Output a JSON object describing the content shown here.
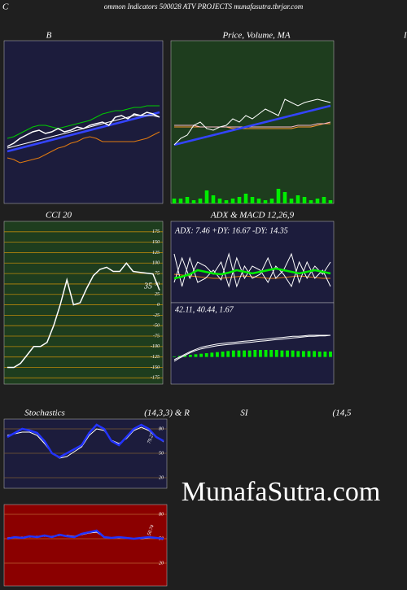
{
  "header": {
    "left": "C",
    "title": "ommon  Indicators 500028  ATV PROJECTS munafasutra.tbrjar.com",
    "right": "I"
  },
  "watermark": "MunafaSutra.com",
  "chart_data": [
    {
      "type": "line",
      "title": "B",
      "background": "#1c1c3c",
      "ylim": [
        0,
        100
      ],
      "series": [
        {
          "color": "#00cc00",
          "line_width": 1,
          "values": [
            40,
            41,
            43,
            45,
            47,
            48,
            48,
            47,
            46,
            47,
            48,
            49,
            50,
            51,
            53,
            55,
            56,
            57,
            57,
            58,
            59,
            59,
            60,
            60,
            60
          ]
        },
        {
          "color": "#e07a10",
          "line_width": 1,
          "values": [
            28,
            27,
            25,
            26,
            27,
            28,
            30,
            32,
            34,
            35,
            37,
            38,
            40,
            41,
            40,
            38,
            38,
            38,
            38,
            38,
            38,
            39,
            40,
            42,
            44
          ]
        },
        {
          "color": "#3344ff",
          "line_width": 2.5,
          "values": [
            32,
            33,
            34,
            35,
            36,
            37,
            38,
            39,
            40,
            41,
            42,
            43,
            44,
            45,
            46,
            47,
            48,
            49,
            50,
            51,
            52,
            53,
            54,
            55,
            56
          ]
        },
        {
          "color": "#ffffff",
          "line_width": 1,
          "values": [
            34,
            35,
            36,
            37,
            38,
            39,
            40,
            41,
            42,
            43,
            44,
            45,
            46,
            47,
            48,
            49,
            50,
            51,
            52,
            53,
            54,
            54,
            54,
            54,
            53
          ]
        },
        {
          "color": "#ffffff",
          "line_width": 1.5,
          "values": [
            35,
            37,
            40,
            42,
            44,
            45,
            43,
            44,
            46,
            44,
            45,
            47,
            46,
            48,
            49,
            50,
            48,
            53,
            54,
            52,
            55,
            54,
            56,
            55,
            53
          ]
        }
      ]
    },
    {
      "type": "line",
      "title": "Price,  Volume,  MA",
      "background": "#1e3d1e",
      "ylim": [
        0,
        100
      ],
      "series": [
        {
          "type": "bar",
          "color": "#00ee00",
          "values": [
            3,
            3,
            4,
            2,
            3,
            8,
            5,
            3,
            2,
            3,
            4,
            6,
            4,
            3,
            2,
            3,
            9,
            7,
            3,
            5,
            4,
            2,
            3,
            4,
            2
          ]
        },
        {
          "color": "#ff9933",
          "line_width": 1,
          "values": [
            47,
            47,
            47,
            47,
            47,
            47,
            47,
            47,
            47,
            46,
            46,
            46,
            46,
            46,
            46,
            46,
            46,
            46,
            46,
            47,
            47,
            47,
            48,
            49,
            49
          ]
        },
        {
          "color": "#ffbbcc",
          "line_width": 1,
          "values": [
            48,
            48,
            48,
            48,
            47,
            47,
            47,
            47,
            47,
            47,
            47,
            47,
            47,
            47,
            47,
            47,
            47,
            47,
            47,
            48,
            48,
            48,
            49,
            49,
            50
          ]
        },
        {
          "color": "#3344ff",
          "line_width": 2.5,
          "values": [
            36,
            37,
            38,
            39,
            40,
            41,
            42,
            43,
            44,
            45,
            46,
            47,
            48,
            49,
            50,
            51,
            52,
            53,
            54,
            55,
            56,
            57,
            58,
            59,
            60
          ]
        },
        {
          "color": "#ffffff",
          "line_width": 1,
          "values": [
            36,
            40,
            42,
            48,
            50,
            46,
            45,
            47,
            48,
            52,
            50,
            54,
            52,
            55,
            58,
            56,
            54,
            64,
            62,
            60,
            62,
            63,
            64,
            63,
            62
          ]
        }
      ]
    },
    {
      "type": "line",
      "title": "CCI 20",
      "background": "#1e3d1e",
      "grid_color": "#b8860b",
      "ylim": [
        -190,
        200
      ],
      "yticks": [
        175,
        150,
        125,
        100,
        75,
        50,
        25,
        0,
        -25,
        -50,
        -75,
        -100,
        -125,
        -150,
        -175
      ],
      "readout": 35,
      "series": [
        {
          "color": "#ffffff",
          "line_width": 1.5,
          "values": [
            -150,
            -150,
            -140,
            -120,
            -100,
            -100,
            -90,
            -50,
            0,
            60,
            0,
            5,
            40,
            70,
            85,
            90,
            80,
            80,
            100,
            80,
            78,
            76,
            74,
            35
          ]
        }
      ]
    },
    {
      "type": "line",
      "title": "ADX  & MACD 12,26,9",
      "text": "ADX: 7.46  +DY: 16.67 -DY: 14.35",
      "background": "#1c1c3c",
      "ylim": [
        0,
        100
      ],
      "series": [
        {
          "color": "#e07a10",
          "line_width": 1,
          "values": [
            35,
            34,
            33,
            32,
            31,
            30,
            30,
            31,
            32,
            33,
            32,
            31,
            30,
            30,
            31,
            32,
            33,
            32,
            31,
            30,
            30
          ]
        },
        {
          "color": "#ffffff",
          "line_width": 1,
          "values": [
            60,
            20,
            55,
            25,
            30,
            40,
            28,
            60,
            20,
            45,
            30,
            35,
            55,
            30,
            40,
            60,
            25,
            50,
            30,
            40,
            20
          ]
        },
        {
          "color": "#ffffff",
          "line_width": 1,
          "values": [
            25,
            55,
            30,
            50,
            45,
            35,
            50,
            20,
            55,
            30,
            45,
            40,
            25,
            45,
            35,
            20,
            50,
            30,
            45,
            35,
            50
          ]
        },
        {
          "color": "#00ee00",
          "line_width": 2.5,
          "values": [
            30,
            32,
            35,
            40,
            38,
            36,
            35,
            37,
            40,
            38,
            36,
            38,
            40,
            42,
            40,
            38,
            36,
            38,
            40,
            38,
            36
          ]
        }
      ]
    },
    {
      "type": "line",
      "text": "42.11,  40.44,  1.67",
      "background": "#1c1c3c",
      "ylim": [
        -50,
        100
      ],
      "series": [
        {
          "type": "bar",
          "color": "#00ee00",
          "values": [
            1,
            2,
            3,
            4,
            5,
            6,
            7,
            8,
            9,
            10,
            11,
            12,
            12,
            12,
            12,
            13,
            13,
            13,
            13,
            13,
            12,
            12,
            12,
            11,
            11,
            11,
            11,
            10,
            10,
            10
          ]
        },
        {
          "color": "#ffffff",
          "line_width": 1,
          "values": [
            -5,
            0,
            5,
            10,
            14,
            18,
            20,
            22,
            24,
            25,
            26,
            27,
            28,
            29,
            30,
            31,
            32,
            33,
            34,
            35,
            36,
            37,
            38,
            38,
            39,
            40,
            40,
            40,
            40,
            40
          ]
        },
        {
          "color": "#ffffff",
          "line_width": 1,
          "values": [
            -8,
            -2,
            3,
            8,
            12,
            15,
            17,
            19,
            21,
            22,
            23,
            24,
            25,
            26,
            27,
            28,
            29,
            30,
            31,
            32,
            33,
            34,
            35,
            36,
            37,
            38,
            38,
            39,
            39,
            40
          ]
        }
      ]
    },
    {
      "type": "line",
      "title": [
        "Stochastics",
        "(14,3,3) & R",
        "SI",
        "(14,5"
      ],
      "background": "#1c1c3c",
      "grid_color": "#7a5a30",
      "ylim": [
        7,
        92
      ],
      "yticks": [
        80,
        50,
        20
      ],
      "readout": 79.27,
      "series": [
        {
          "color": "#ffffff",
          "line_width": 1,
          "values": [
            72,
            74,
            76,
            76,
            72,
            62,
            50,
            44,
            46,
            52,
            58,
            72,
            80,
            78,
            66,
            62,
            68,
            78,
            82,
            78,
            70,
            64
          ]
        },
        {
          "color": "#2233ff",
          "line_width": 2.5,
          "values": [
            70,
            75,
            80,
            78,
            75,
            65,
            50,
            45,
            50,
            55,
            60,
            75,
            85,
            80,
            65,
            60,
            70,
            80,
            85,
            80,
            70,
            65
          ]
        }
      ]
    },
    {
      "type": "line",
      "background": "#8b0000",
      "grid_color": "#b86030",
      "ylim": [
        -8,
        92
      ],
      "yticks": [
        80,
        50,
        20
      ],
      "readout": 50.74,
      "series": [
        {
          "color": "#ffffff",
          "line_width": 1,
          "values": [
            51,
            52,
            52,
            52,
            53,
            53,
            53,
            54,
            54,
            53,
            55,
            57,
            58,
            52,
            51,
            51,
            51,
            50,
            50,
            51,
            51,
            50
          ]
        },
        {
          "color": "#2233ff",
          "line_width": 2.5,
          "values": [
            50,
            52,
            51,
            53,
            52,
            54,
            52,
            55,
            53,
            52,
            56,
            58,
            60,
            52,
            51,
            52,
            51,
            50,
            51,
            52,
            51,
            50
          ]
        }
      ]
    }
  ]
}
